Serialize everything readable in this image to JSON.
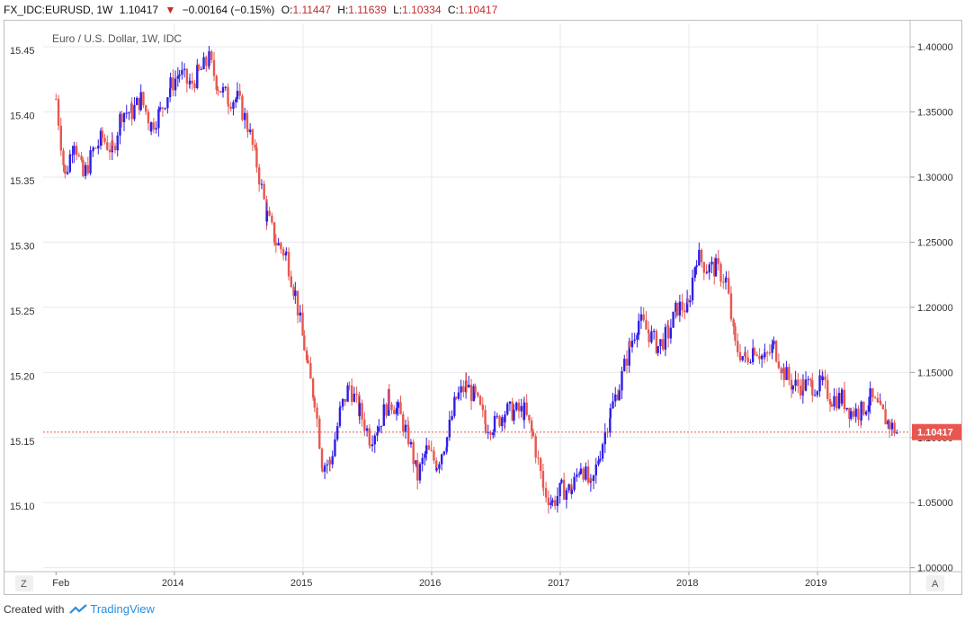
{
  "header": {
    "symbol": "FX_IDC:EURUSD, 1W",
    "last": "1.10417",
    "change": "−0.00164 (−0.15%)",
    "o_label": "O:",
    "o_val": "1.11447",
    "h_label": "H:",
    "h_val": "1.11639",
    "l_label": "L:",
    "l_val": "1.10334",
    "c_label": "C:",
    "c_val": "1.10417"
  },
  "footer": {
    "created_with": "Created with",
    "brand": "TradingView"
  },
  "buttons": {
    "z": "Z",
    "a": "A"
  },
  "chart_data": {
    "type": "line",
    "title": "Euro / U.S. Dollar, 1W, IDC",
    "right_axis": {
      "ticks": [
        "1.40000",
        "1.35000",
        "1.30000",
        "1.25000",
        "1.20000",
        "1.15000",
        "1.10000",
        "1.05000",
        "1.00000"
      ],
      "ylim": [
        0.997,
        1.418
      ]
    },
    "left_axis": {
      "ticks": [
        "15.45",
        "15.40",
        "15.35",
        "15.30",
        "15.25",
        "15.20",
        "15.15",
        "15.10"
      ]
    },
    "x_ticks": [
      "Feb",
      "2014",
      "2015",
      "2016",
      "2017",
      "2018",
      "2019"
    ],
    "last_price_label": "1.10417",
    "colors": {
      "up": "#2f1ee6",
      "down": "#e8574f",
      "last": "#e8574f",
      "grid": "#e6e9ee"
    },
    "series": [
      {
        "x": [
          2013.08,
          2013.15,
          2013.22,
          2013.29,
          2013.37,
          2013.44,
          2013.52,
          2013.59,
          2013.67,
          2013.74,
          2013.82,
          2013.89,
          2013.97,
          2014.04,
          2014.12,
          2014.19,
          2014.27,
          2014.34,
          2014.42,
          2014.49,
          2014.57,
          2014.64,
          2014.72,
          2014.79,
          2014.87,
          2014.94,
          2015.01,
          2015.04,
          2015.09,
          2015.15,
          2015.21,
          2015.29,
          2015.36,
          2015.44,
          2015.52,
          2015.59,
          2015.67,
          2015.74,
          2015.82,
          2015.89,
          2015.96,
          2016.04,
          2016.12,
          2016.19,
          2016.27,
          2016.34,
          2016.42,
          2016.49,
          2016.57,
          2016.64,
          2016.72,
          2016.79,
          2016.87,
          2016.94,
          2017.01,
          2017.09,
          2017.16,
          2017.24,
          2017.31,
          2017.39,
          2017.46,
          2017.54,
          2017.61,
          2017.69,
          2017.76,
          2017.84,
          2017.91,
          2017.99,
          2018.06,
          2018.14,
          2018.21,
          2018.29,
          2018.36,
          2018.44,
          2018.51,
          2018.59,
          2018.66,
          2018.74,
          2018.81,
          2018.89,
          2018.96,
          2019.04,
          2019.11,
          2019.19,
          2019.26,
          2019.34,
          2019.41,
          2019.49,
          2019.56,
          2019.62
        ],
        "y": [
          1.36,
          1.3,
          1.33,
          1.3,
          1.32,
          1.33,
          1.32,
          1.35,
          1.35,
          1.36,
          1.34,
          1.35,
          1.37,
          1.38,
          1.37,
          1.38,
          1.39,
          1.37,
          1.36,
          1.36,
          1.34,
          1.31,
          1.27,
          1.25,
          1.24,
          1.21,
          1.17,
          1.15,
          1.13,
          1.08,
          1.08,
          1.12,
          1.14,
          1.12,
          1.1,
          1.11,
          1.13,
          1.12,
          1.1,
          1.07,
          1.09,
          1.08,
          1.1,
          1.13,
          1.14,
          1.13,
          1.11,
          1.11,
          1.12,
          1.12,
          1.12,
          1.1,
          1.06,
          1.05,
          1.06,
          1.06,
          1.08,
          1.06,
          1.09,
          1.12,
          1.14,
          1.17,
          1.19,
          1.18,
          1.17,
          1.18,
          1.2,
          1.2,
          1.24,
          1.23,
          1.23,
          1.22,
          1.17,
          1.16,
          1.17,
          1.16,
          1.17,
          1.15,
          1.14,
          1.14,
          1.14,
          1.14,
          1.13,
          1.13,
          1.12,
          1.12,
          1.13,
          1.12,
          1.11,
          1.104
        ]
      }
    ]
  }
}
